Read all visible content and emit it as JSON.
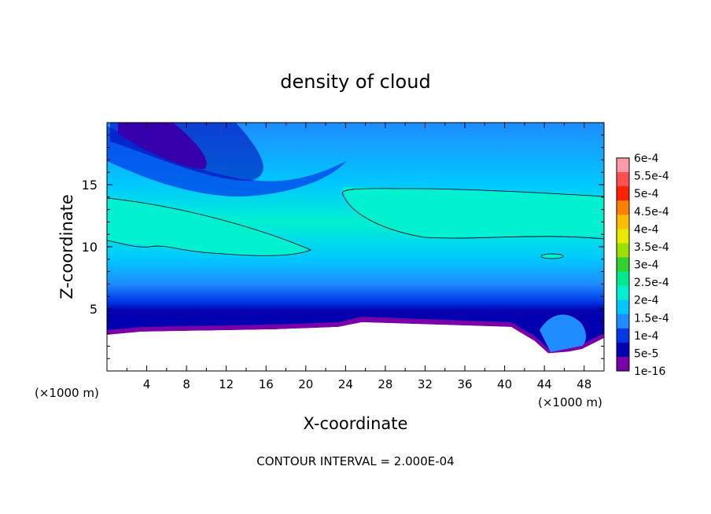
{
  "chart_data": {
    "type": "heatmap",
    "title": "density of cloud",
    "xlabel": "X-coordinate",
    "ylabel": "Z-coordinate",
    "x_unit": "(×1000 m)",
    "y_unit": "(×1000 m)",
    "xlim": [
      0,
      50
    ],
    "ylim": [
      0,
      20
    ],
    "x_ticks": [
      "4",
      "8",
      "12",
      "16",
      "20",
      "24",
      "28",
      "32",
      "36",
      "40",
      "44",
      "48"
    ],
    "y_ticks": [
      "5",
      "10",
      "15"
    ],
    "footer": "CONTOUR INTERVAL = 2.000E-04",
    "colorbar": {
      "labels": [
        "6e-4",
        "5.5e-4",
        "5e-4",
        "4.5e-4",
        "4e-4",
        "3.5e-4",
        "3e-4",
        "2.5e-4",
        "2e-4",
        "1.5e-4",
        "1e-4",
        "5e-5",
        "1e-16"
      ],
      "colors": [
        "#ff9aa8",
        "#ff5050",
        "#ff2000",
        "#ff8000",
        "#ffbf00",
        "#e8e800",
        "#9be000",
        "#30d030",
        "#00e890",
        "#00f0d0",
        "#00c8ff",
        "#1f8cff",
        "#0038e6",
        "#0000b0",
        "#7a00a8"
      ]
    },
    "grid": false,
    "legend": "right"
  }
}
